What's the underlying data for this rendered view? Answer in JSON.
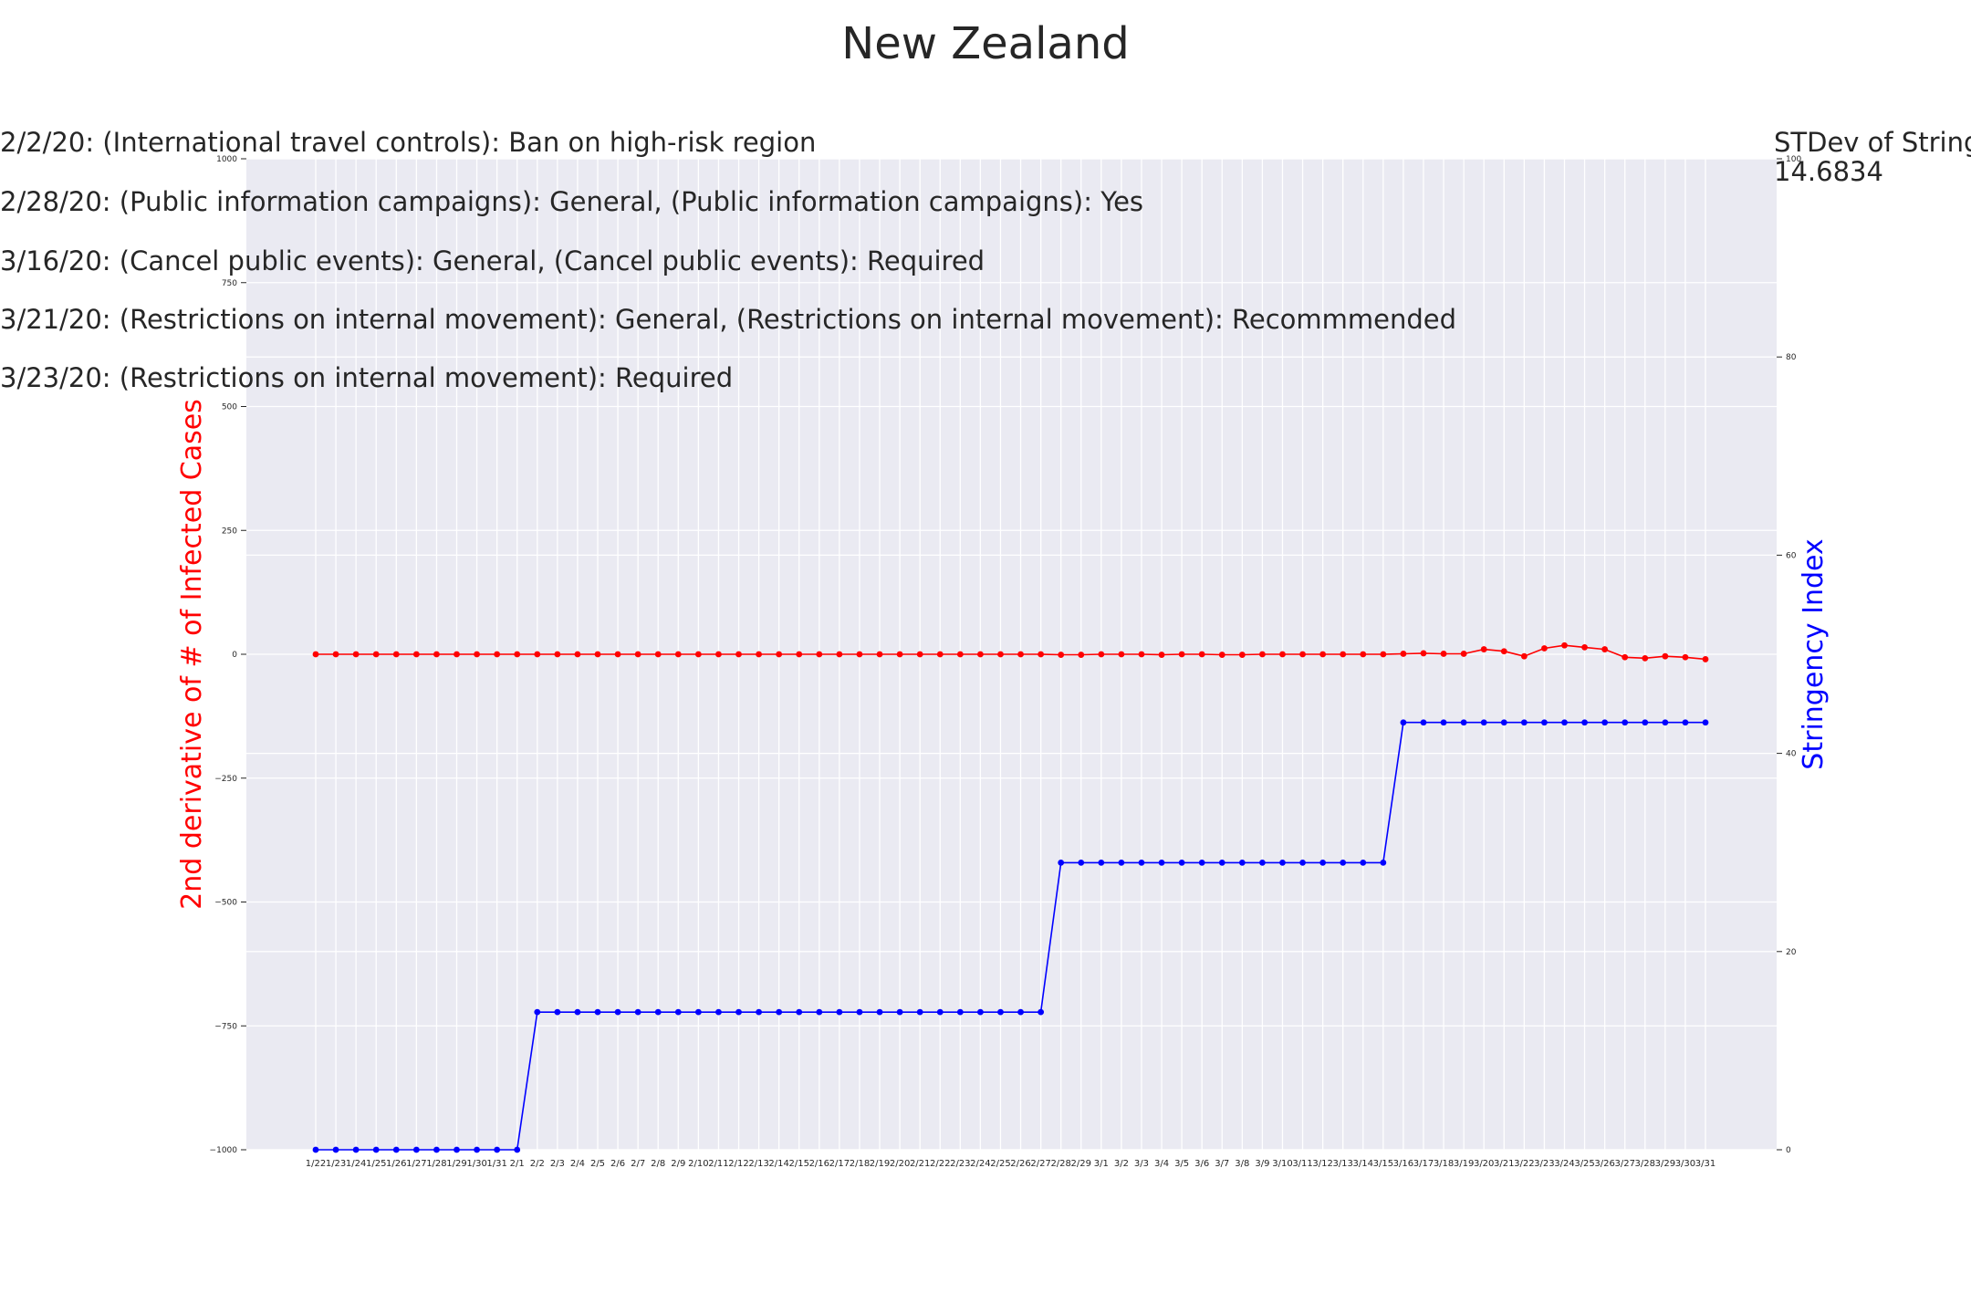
{
  "chart_data": {
    "type": "line",
    "title": "New Zealand",
    "categories": [
      "1/22",
      "1/23",
      "1/24",
      "1/25",
      "1/26",
      "1/27",
      "1/28",
      "1/29",
      "1/30",
      "1/31",
      "2/1",
      "2/2",
      "2/3",
      "2/4",
      "2/5",
      "2/6",
      "2/7",
      "2/8",
      "2/9",
      "2/10",
      "2/11",
      "2/12",
      "2/13",
      "2/14",
      "2/15",
      "2/16",
      "2/17",
      "2/18",
      "2/19",
      "2/20",
      "2/21",
      "2/22",
      "2/23",
      "2/24",
      "2/25",
      "2/26",
      "2/27",
      "2/28",
      "2/29",
      "3/1",
      "3/2",
      "3/3",
      "3/4",
      "3/5",
      "3/6",
      "3/7",
      "3/8",
      "3/9",
      "3/10",
      "3/11",
      "3/12",
      "3/13",
      "3/14",
      "3/15",
      "3/16",
      "3/17",
      "3/18",
      "3/19",
      "3/20",
      "3/21",
      "3/22",
      "3/23",
      "3/24",
      "3/25",
      "3/26",
      "3/27",
      "3/28",
      "3/29",
      "3/30",
      "3/31"
    ],
    "series": [
      {
        "axis": "left",
        "color": "#ff0000",
        "values": [
          0,
          0,
          0,
          0,
          0,
          0,
          0,
          0,
          0,
          0,
          0,
          0,
          0,
          0,
          0,
          0,
          0,
          0,
          0,
          0,
          0,
          0,
          0,
          0,
          0,
          0,
          0,
          0,
          0,
          0,
          0,
          0,
          0,
          0,
          0,
          0,
          0,
          -1,
          -1,
          0,
          0,
          0,
          -1,
          0,
          0,
          -1,
          -1,
          0,
          0,
          0,
          0,
          0,
          0,
          0,
          1,
          2,
          1,
          1,
          10,
          6,
          -4,
          12,
          18,
          14,
          10,
          -6,
          -8,
          -4,
          -6,
          -10
        ]
      },
      {
        "axis": "right",
        "color": "#0000ff",
        "values": [
          0,
          0,
          0,
          0,
          0,
          0,
          0,
          0,
          0,
          0,
          0,
          13.89,
          13.89,
          13.89,
          13.89,
          13.89,
          13.89,
          13.89,
          13.89,
          13.89,
          13.89,
          13.89,
          13.89,
          13.89,
          13.89,
          13.89,
          13.89,
          13.89,
          13.89,
          13.89,
          13.89,
          13.89,
          13.89,
          13.89,
          13.89,
          13.89,
          13.89,
          28.97,
          28.97,
          28.97,
          28.97,
          28.97,
          28.97,
          28.97,
          28.97,
          28.97,
          28.97,
          28.97,
          28.97,
          28.97,
          28.97,
          28.97,
          28.97,
          28.97,
          43.12,
          43.12,
          43.12,
          43.12,
          43.12,
          43.12,
          43.12,
          43.12,
          43.12,
          43.12,
          43.12,
          43.12,
          43.12,
          43.12,
          43.12,
          43.12
        ]
      }
    ],
    "ylabel": "2nd derivative of # of Infected Cases",
    "ylim": [
      -1000,
      1000
    ],
    "yticks": [
      -1000,
      -750,
      -500,
      -250,
      0,
      250,
      500,
      750,
      1000
    ],
    "y2label": "Stringency Index",
    "y2lim": [
      0,
      100
    ],
    "y2ticks": [
      0,
      20,
      40,
      60,
      80,
      100
    ],
    "grid": true,
    "colors": {
      "background": "#eaeaf2",
      "grid": "#ffffff"
    },
    "annotations": [
      "2/2/20: (International travel controls): Ban on high-risk region",
      "2/28/20: (Public information campaigns): General, (Public information campaigns): Yes",
      "3/16/20: (Cancel public events): General, (Cancel public events): Required",
      "3/21/20: (Restrictions on internal movement): General, (Restrictions on internal movement): Recommmended",
      "3/23/20: (Restrictions on internal movement): Required"
    ],
    "side_note": {
      "label": "STDev of Stringency Index:",
      "value": "14.6834"
    }
  }
}
